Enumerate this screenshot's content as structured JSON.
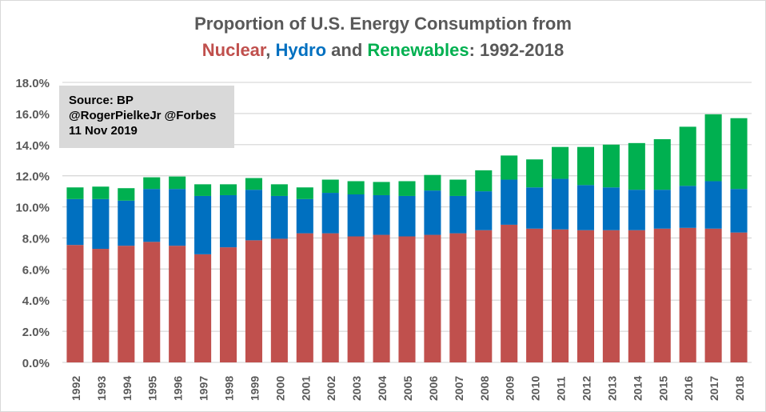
{
  "title": {
    "line1": "Proportion of U.S. Energy Consumption from",
    "nuclear": "Nuclear",
    "comma": ", ",
    "hydro": "Hydro",
    "and": " and ",
    "renewables": "Renewables",
    "suffix": ": 1992-2018"
  },
  "source_box": {
    "line1": "Source: BP",
    "line2": "@RogerPielkeJr @Forbes",
    "line3": "11 Nov 2019"
  },
  "colors": {
    "nuclear": "#c0504d",
    "hydro": "#0070c0",
    "renewables": "#00b050",
    "grid": "#d9d9d9",
    "text": "#595959"
  },
  "chart_data": {
    "type": "bar",
    "stacked": true,
    "title": "Proportion of U.S. Energy Consumption from Nuclear, Hydro and Renewables: 1992-2018",
    "xlabel": "",
    "ylabel": "",
    "ylim": [
      0,
      18
    ],
    "yticks": [
      0,
      2,
      4,
      6,
      8,
      10,
      12,
      14,
      16,
      18
    ],
    "ytick_labels": [
      "0.0%",
      "2.0%",
      "4.0%",
      "6.0%",
      "8.0%",
      "10.0%",
      "12.0%",
      "14.0%",
      "16.0%",
      "18.0%"
    ],
    "grid": true,
    "legend": "none (series identified by colored title words)",
    "categories": [
      "1992",
      "1993",
      "1994",
      "1995",
      "1996",
      "1997",
      "1998",
      "1999",
      "2000",
      "2001",
      "2002",
      "2003",
      "2004",
      "2005",
      "2006",
      "2007",
      "2008",
      "2009",
      "2010",
      "2011",
      "2012",
      "2013",
      "2014",
      "2015",
      "2016",
      "2017",
      "2018"
    ],
    "series": [
      {
        "name": "Nuclear",
        "values": [
          7.55,
          7.3,
          7.5,
          7.75,
          7.5,
          6.95,
          7.4,
          7.85,
          7.95,
          8.3,
          8.3,
          8.1,
          8.2,
          8.1,
          8.2,
          8.3,
          8.5,
          8.85,
          8.6,
          8.55,
          8.5,
          8.5,
          8.5,
          8.6,
          8.65,
          8.6,
          8.35
        ]
      },
      {
        "name": "Hydro",
        "values": [
          2.95,
          3.2,
          2.9,
          3.4,
          3.65,
          3.75,
          3.35,
          3.25,
          2.75,
          2.2,
          2.6,
          2.7,
          2.55,
          2.6,
          2.85,
          2.4,
          2.5,
          2.9,
          2.65,
          3.25,
          2.9,
          2.75,
          2.6,
          2.5,
          2.7,
          3.05,
          2.8
        ]
      },
      {
        "name": "Renewables",
        "values": [
          0.75,
          0.8,
          0.8,
          0.75,
          0.8,
          0.75,
          0.7,
          0.75,
          0.75,
          0.75,
          0.85,
          0.85,
          0.85,
          0.95,
          1.0,
          1.05,
          1.35,
          1.55,
          1.8,
          2.05,
          2.45,
          2.75,
          3.0,
          3.25,
          3.8,
          4.3,
          4.55
        ]
      }
    ]
  }
}
